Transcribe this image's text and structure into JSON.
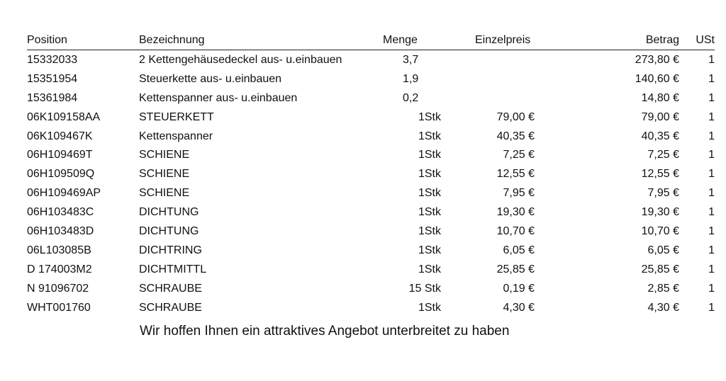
{
  "headers": {
    "position": "Position",
    "bezeichnung": "Bezeichnung",
    "menge": "Menge",
    "einzelpreis": "Einzelpreis",
    "betrag": "Betrag",
    "ust": "USt"
  },
  "rows": [
    {
      "position": "15332033",
      "bezeichnung": "2 Kettengehäusedeckel aus- u.einbauen",
      "menge": "3,7",
      "einzelpreis": "",
      "betrag": "273,80 €",
      "ust": "1"
    },
    {
      "position": "15351954",
      "bezeichnung": "Steuerkette aus- u.einbauen",
      "menge": "1,9",
      "einzelpreis": "",
      "betrag": "140,60 €",
      "ust": "1"
    },
    {
      "position": "15361984",
      "bezeichnung": "Kettenspanner aus- u.einbauen",
      "menge": "0,2",
      "einzelpreis": "",
      "betrag": "14,80 €",
      "ust": "1"
    },
    {
      "position": "06K109158AA",
      "bezeichnung": "STEUERKETT",
      "menge": "1Stk",
      "einzelpreis": "79,00 €",
      "betrag": "79,00 €",
      "ust": "1"
    },
    {
      "position": "06K109467K",
      "bezeichnung": "Kettenspanner",
      "menge": "1Stk",
      "einzelpreis": "40,35 €",
      "betrag": "40,35 €",
      "ust": "1"
    },
    {
      "position": "06H109469T",
      "bezeichnung": "SCHIENE",
      "menge": "1Stk",
      "einzelpreis": "7,25 €",
      "betrag": "7,25 €",
      "ust": "1"
    },
    {
      "position": "06H109509Q",
      "bezeichnung": "SCHIENE",
      "menge": "1Stk",
      "einzelpreis": "12,55 €",
      "betrag": "12,55 €",
      "ust": "1"
    },
    {
      "position": "06H109469AP",
      "bezeichnung": "SCHIENE",
      "menge": "1Stk",
      "einzelpreis": "7,95 €",
      "betrag": "7,95 €",
      "ust": "1"
    },
    {
      "position": "06H103483C",
      "bezeichnung": "DICHTUNG",
      "menge": "1Stk",
      "einzelpreis": "19,30 €",
      "betrag": "19,30 €",
      "ust": "1"
    },
    {
      "position": "06H103483D",
      "bezeichnung": "DICHTUNG",
      "menge": "1Stk",
      "einzelpreis": "10,70 €",
      "betrag": "10,70 €",
      "ust": "1"
    },
    {
      "position": "06L103085B",
      "bezeichnung": "DICHTRING",
      "menge": "1Stk",
      "einzelpreis": "6,05 €",
      "betrag": "6,05 €",
      "ust": "1"
    },
    {
      "position": "D  174003M2",
      "bezeichnung": "DICHTMITTL",
      "menge": "1Stk",
      "einzelpreis": "25,85 €",
      "betrag": "25,85 €",
      "ust": "1"
    },
    {
      "position": "N  91096702",
      "bezeichnung": "SCHRAUBE",
      "menge": "15 Stk",
      "einzelpreis": "0,19 €",
      "betrag": "2,85 €",
      "ust": "1"
    },
    {
      "position": "WHT001760",
      "bezeichnung": "SCHRAUBE",
      "menge": "1Stk",
      "einzelpreis": "4,30 €",
      "betrag": "4,30 €",
      "ust": "1"
    }
  ],
  "footer": {
    "note": "Wir hoffen Ihnen ein attraktives Angebot unterbreitet zu haben"
  }
}
